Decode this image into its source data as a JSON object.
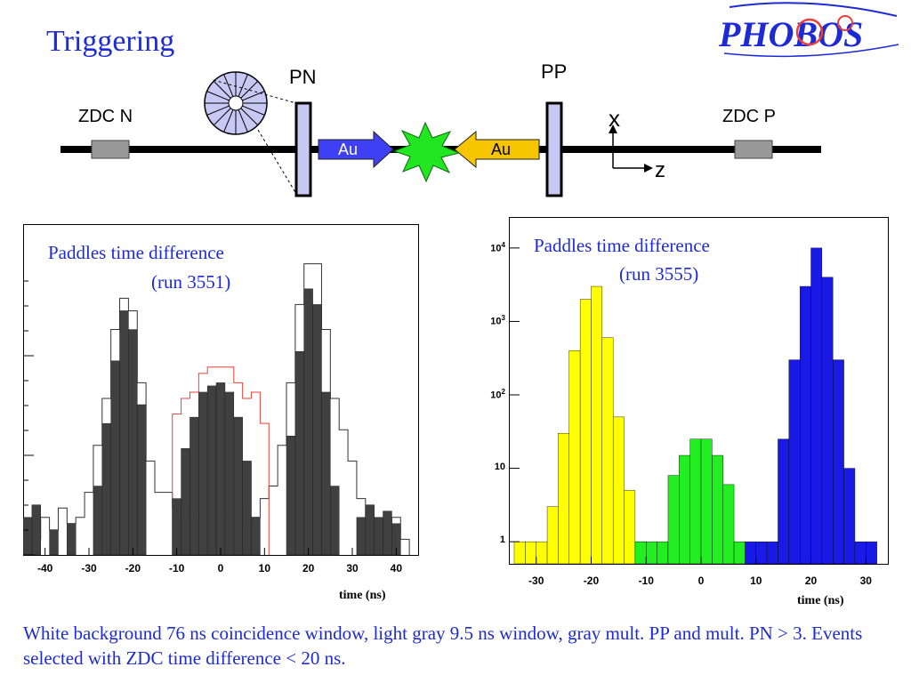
{
  "slide": {
    "title": "Triggering",
    "caption": "White background 76 ns coincidence window, light gray 9.5 ns window, gray mult. PP and mult. PN > 3. Events selected with  ZDC time difference < 20 ns.",
    "logo_text": "PHOBOS"
  },
  "diagram": {
    "pn_label": "PN",
    "pp_label": "PP",
    "zdc_n_label": "ZDC N",
    "zdc_p_label": "ZDC P",
    "beam_left_label": "Au",
    "beam_right_label": "Au",
    "axis_x_label": "x",
    "axis_z_label": "z",
    "colors": {
      "beam_left": "#3f3ff5",
      "beam_right": "#f7c400",
      "collision": "#22e622",
      "paddle": "#c8c8f5",
      "zdc": "#999999"
    }
  },
  "chart_data": [
    {
      "type": "bar",
      "title": "Paddles time difference",
      "subtitle": "(run 3551)",
      "xlabel": "time (ns)",
      "ylabel": "",
      "xlim": [
        -45,
        45
      ],
      "xticks": [
        "-40",
        "-30",
        "-20",
        "-10",
        "0",
        "10",
        "20",
        "30",
        "40"
      ],
      "grid": false,
      "series": [
        {
          "name": "",
          "style": "outline-black",
          "color": "#333333",
          "x": [
            -42,
            -40,
            -38,
            -36,
            -34,
            -32,
            -30,
            -28,
            -26,
            -24,
            -22,
            -20,
            -18,
            -16,
            -14,
            -12,
            -10,
            -8,
            -6,
            -4,
            -2,
            0,
            2,
            4,
            6,
            8,
            10,
            12,
            14,
            16,
            18,
            20,
            22,
            24,
            26,
            28,
            30,
            32,
            34,
            36,
            38,
            40,
            42
          ],
          "values": [
            0.05,
            0.12,
            0.08,
            0.15,
            0.1,
            0.12,
            0.2,
            0.35,
            0.5,
            0.72,
            0.82,
            0.78,
            0.55,
            0.3,
            0.2,
            0.2,
            0.15,
            0.12,
            0.15,
            0.12,
            0.1,
            0.15,
            0.12,
            0.15,
            0.1,
            0.12,
            0.18,
            0.22,
            0.35,
            0.55,
            0.8,
            0.93,
            0.93,
            0.72,
            0.5,
            0.4,
            0.3,
            0.18,
            0.12,
            0.1,
            0.08,
            0.12,
            0.05
          ]
        },
        {
          "name": "",
          "style": "outline-red",
          "color": "#e8403a",
          "x": [
            -10,
            -8,
            -6,
            -4,
            -2,
            0,
            2,
            4,
            6,
            8,
            10
          ],
          "values": [
            0.45,
            0.5,
            0.52,
            0.58,
            0.6,
            0.6,
            0.6,
            0.55,
            0.5,
            0.52,
            0.42
          ]
        },
        {
          "name": "",
          "style": "filled-gray",
          "color": "#404040",
          "x": [
            -44,
            -42,
            -40,
            -38,
            -36,
            -34,
            -32,
            -30,
            -28,
            -26,
            -24,
            -22,
            -20,
            -18,
            -16,
            -14,
            -12,
            -10,
            -8,
            -6,
            -4,
            -2,
            0,
            2,
            4,
            6,
            8,
            10,
            12,
            14,
            16,
            18,
            20,
            22,
            24,
            26,
            28,
            30,
            32,
            34,
            36,
            38,
            40,
            42
          ],
          "values": [
            0.12,
            0.16,
            0,
            0.08,
            0,
            0.1,
            0,
            0,
            0.22,
            0.42,
            0.62,
            0.78,
            0.72,
            0.48,
            0,
            0,
            0,
            0.18,
            0.34,
            0.44,
            0.52,
            0.54,
            0.55,
            0.52,
            0.44,
            0.3,
            0.12,
            0,
            0,
            0,
            0.38,
            0.65,
            0.85,
            0.8,
            0.52,
            0.22,
            0,
            0,
            0.12,
            0.16,
            0.12,
            0.14,
            0.1,
            0
          ]
        }
      ]
    },
    {
      "type": "bar",
      "title": "Paddles time difference",
      "subtitle": "(run 3555)",
      "xlabel": "time (ns)",
      "ylabel": "",
      "log_scale": true,
      "xlim": [
        -34,
        34
      ],
      "ylim": [
        0.5,
        20000
      ],
      "xticks": [
        "-30",
        "-20",
        "-10",
        "0",
        "10",
        "20",
        "30"
      ],
      "yticks": [
        {
          "base": "1",
          "exp": ""
        },
        {
          "base": "10",
          "exp": ""
        },
        {
          "base": "10",
          "exp": "2"
        },
        {
          "base": "10",
          "exp": "3"
        },
        {
          "base": "10",
          "exp": "4"
        }
      ],
      "grid": false,
      "series": [
        {
          "name": "",
          "color": "#ffff00",
          "x": [
            -33,
            -31,
            -29,
            -27,
            -25,
            -23,
            -21,
            -19,
            -17,
            -15,
            -13,
            -11
          ],
          "values": [
            1,
            1,
            1,
            3,
            30,
            400,
            2000,
            3000,
            600,
            50,
            5,
            1
          ]
        },
        {
          "name": "",
          "color": "#22ee22",
          "x": [
            -11,
            -9,
            -7,
            -5,
            -3,
            -1,
            1,
            3,
            5,
            7
          ],
          "values": [
            1,
            1,
            1,
            8,
            15,
            25,
            25,
            15,
            6,
            1
          ]
        },
        {
          "name": "",
          "color": "#1a1ae6",
          "x": [
            9,
            11,
            13,
            15,
            17,
            19,
            21,
            23,
            25,
            27,
            29,
            31
          ],
          "values": [
            1,
            1,
            1,
            25,
            300,
            3000,
            10000,
            4000,
            300,
            10,
            1,
            1
          ]
        }
      ]
    }
  ]
}
